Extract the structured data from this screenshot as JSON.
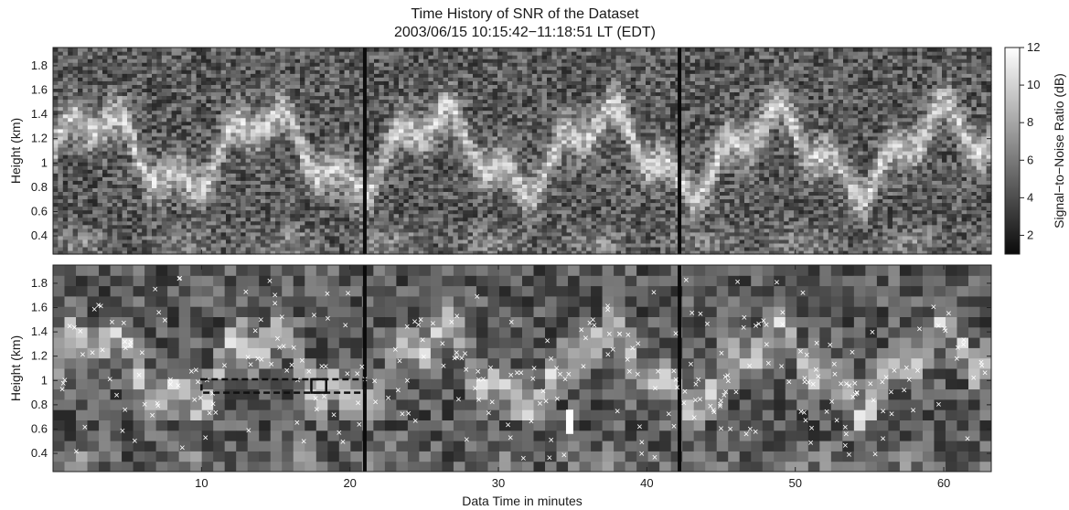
{
  "chart_data": {
    "type": "heatmap",
    "title": "Time History of SNR of the Dataset",
    "subtitle": "2003/06/15 10:15:42−11:18:51 LT (EDT)",
    "xlabel": "Data Time in minutes",
    "xlim": [
      0,
      63.2
    ],
    "xticks": [
      "10",
      "20",
      "30",
      "40",
      "50",
      "60"
    ],
    "colorbar": {
      "label": "Signal−to−Noise Ratio (dB)",
      "range": [
        1,
        12
      ],
      "ticks": [
        "2",
        "4",
        "6",
        "8",
        "10",
        "12"
      ],
      "colormap": "grayscale"
    },
    "panels": [
      {
        "name": "top",
        "ylabel": "Height (km)",
        "ylim": [
          0.25,
          1.95
        ],
        "yticks": [
          "0.4",
          "0.6",
          "0.8",
          "1",
          "1.2",
          "1.4",
          "1.6",
          "1.8"
        ],
        "data_gaps_minutes": [
          21.0,
          42.2
        ]
      },
      {
        "name": "bottom",
        "ylabel": "Height (km)",
        "ylim": [
          0.25,
          1.95
        ],
        "yticks": [
          "0.4",
          "0.6",
          "0.8",
          "1",
          "1.2",
          "1.4",
          "1.6",
          "1.8"
        ],
        "data_gaps_minutes": [
          21.0,
          42.2
        ],
        "marker": "×",
        "highlight_box_dashed": {
          "x": [
            10,
            21
          ],
          "y": [
            0.9,
            1.01
          ]
        },
        "highlight_box_solid": {
          "x": [
            17.4,
            18.4
          ],
          "y": [
            0.9,
            1.01
          ]
        }
      }
    ]
  }
}
